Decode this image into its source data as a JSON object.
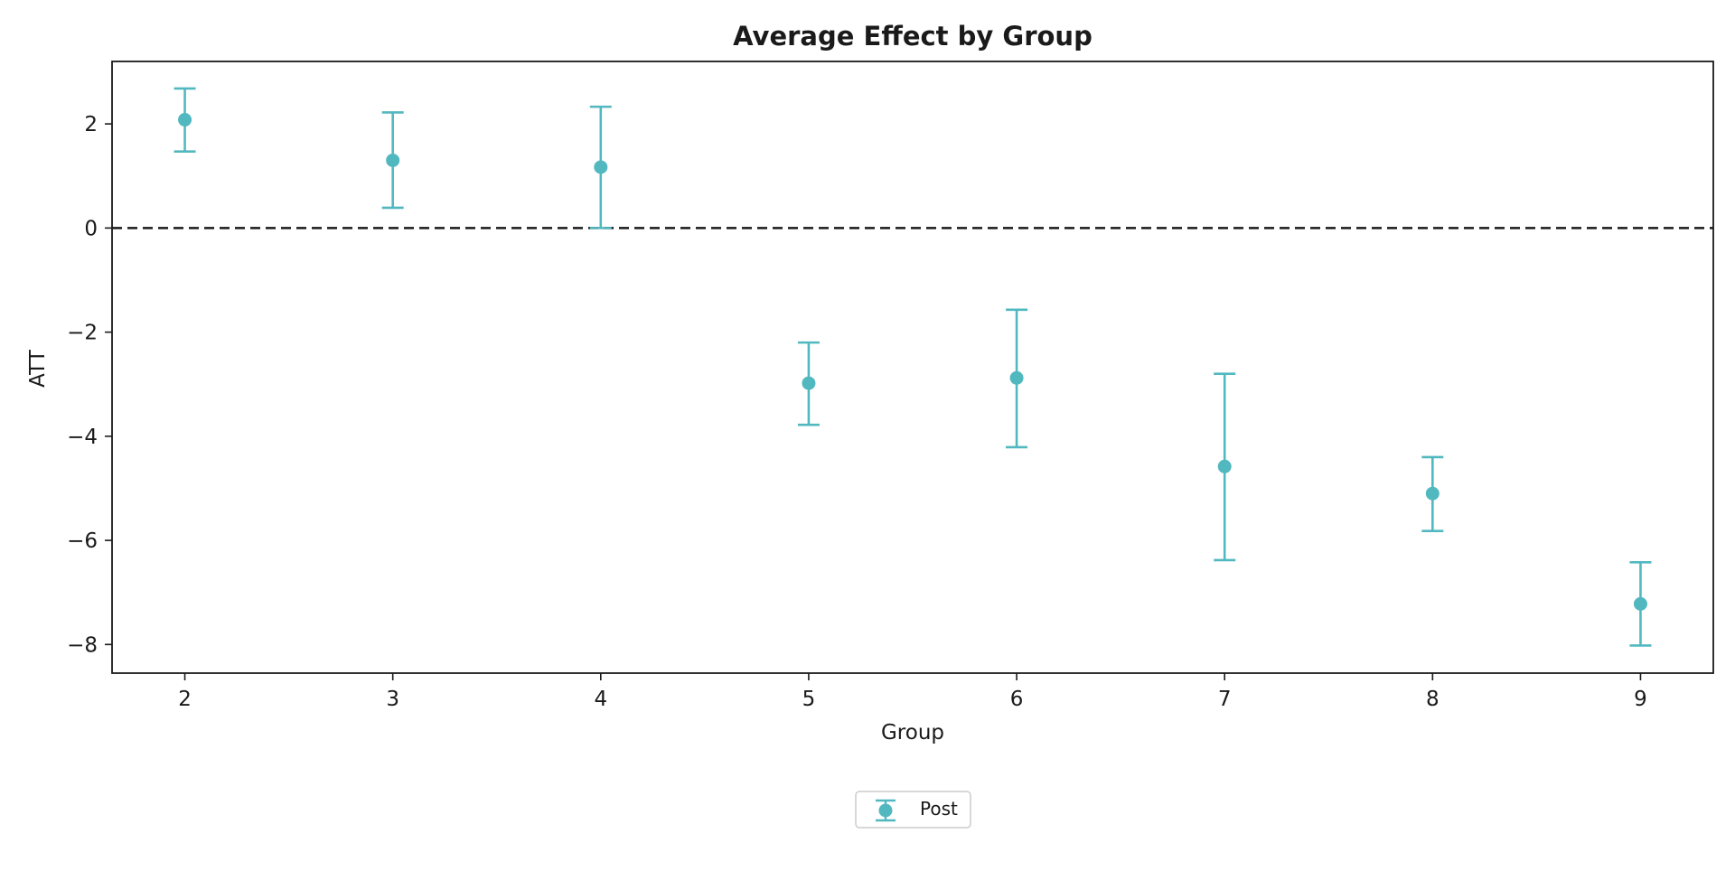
{
  "chart_data": {
    "type": "errorbar",
    "title": "Average Effect by Group",
    "xlabel": "Group",
    "ylabel": "ATT",
    "xlim": [
      1.65,
      9.35
    ],
    "ylim": [
      -8.55,
      3.2
    ],
    "x_ticks": [
      2,
      3,
      4,
      5,
      6,
      7,
      8,
      9
    ],
    "x_tick_labels": [
      "2",
      "3",
      "4",
      "5",
      "6",
      "7",
      "8",
      "9"
    ],
    "y_ticks": [
      2,
      0,
      -2,
      -4,
      -6,
      -8
    ],
    "y_tick_labels": [
      "2",
      "0",
      "−2",
      "−4",
      "−6",
      "−8"
    ],
    "reference_line": {
      "y": 0,
      "style": "dashed",
      "color": "#1a1a1a"
    },
    "grid": false,
    "legend": {
      "position": "bottom-center",
      "entries": [
        "Post"
      ]
    },
    "series": [
      {
        "name": "Post",
        "color": "#52b8c0",
        "marker": "circle",
        "points": [
          {
            "x": 2,
            "y": 2.08,
            "lower": 1.47,
            "upper": 2.68
          },
          {
            "x": 3,
            "y": 1.3,
            "lower": 0.39,
            "upper": 2.22
          },
          {
            "x": 4,
            "y": 1.17,
            "lower": 0.0,
            "upper": 2.33
          },
          {
            "x": 5,
            "y": -2.98,
            "lower": -3.78,
            "upper": -2.2
          },
          {
            "x": 6,
            "y": -2.88,
            "lower": -4.21,
            "upper": -1.57
          },
          {
            "x": 7,
            "y": -4.58,
            "lower": -6.38,
            "upper": -2.8
          },
          {
            "x": 8,
            "y": -5.1,
            "lower": -5.82,
            "upper": -4.4
          },
          {
            "x": 9,
            "y": -7.22,
            "lower": -8.02,
            "upper": -6.42
          }
        ]
      }
    ]
  }
}
